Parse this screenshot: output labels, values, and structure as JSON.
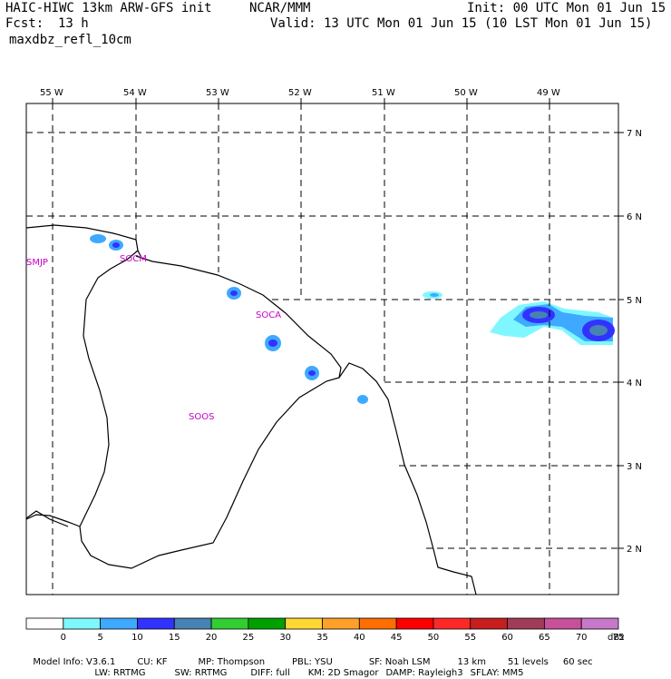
{
  "header": {
    "model": "HAIC-HIWC 13km ARW-GFS init",
    "org": "NCAR/MMM",
    "init": "Init: 00 UTC Mon 01 Jun 15",
    "fcst_label": "Fcst:",
    "fcst_value": "13 h",
    "valid": "Valid: 13 UTC Mon 01 Jun 15 (10 LST Mon 01 Jun 15)",
    "field": "maxdbz_refl_10cm"
  },
  "map": {
    "lon_labels": [
      "55 W",
      "54 W",
      "53 W",
      "52 W",
      "51 W",
      "50 W",
      "49 W"
    ],
    "lat_labels": [
      "7 N",
      "6 N",
      "5 N",
      "4 N",
      "3 N",
      "2 N"
    ],
    "stations": [
      "SMJP",
      "SOCM",
      "SOCA",
      "SOOS"
    ]
  },
  "legend": {
    "values": [
      "0",
      "5",
      "10",
      "15",
      "20",
      "25",
      "30",
      "35",
      "40",
      "45",
      "50",
      "55",
      "60",
      "65",
      "70",
      "75"
    ],
    "unit": "dBz",
    "colors": [
      "#ffffff",
      "#7ff7ff",
      "#3ea9ff",
      "#3232ff",
      "#4682b4",
      "#32cd32",
      "#00a000",
      "#ffd732",
      "#ffa028",
      "#ff6e00",
      "#ff0000",
      "#ff2828",
      "#c81e1e",
      "#a03c5a",
      "#c8509a",
      "#c878c8"
    ]
  },
  "footer": {
    "line1": [
      "Model Info: V3.6.1",
      "CU: KF",
      "MP: Thompson",
      "PBL: YSU",
      "SF: Noah LSM",
      "13 km",
      "51 levels",
      "60 sec"
    ],
    "line2": [
      "LW: RRTMG",
      "SW: RRTMG",
      "DIFF: full",
      "KM: 2D Smagor",
      "DAMP: Rayleigh3",
      "SFLAY: MM5"
    ]
  }
}
